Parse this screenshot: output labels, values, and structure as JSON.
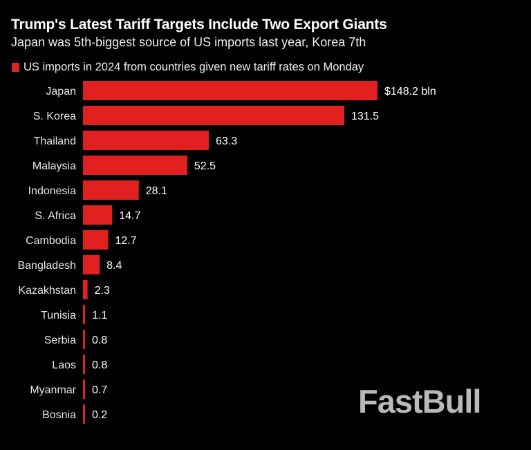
{
  "chart_data": {
    "type": "bar",
    "orientation": "horizontal",
    "title": "Trump's Latest Tariff Targets Include Two Export Giants",
    "subtitle": "Japan was 5th-biggest source of US imports last year, Korea 7th",
    "legend": "US imports in 2024 from countries given new tariff rates on Monday",
    "legend_position": "top-left",
    "categories": [
      "Japan",
      "S. Korea",
      "Thailand",
      "Malaysia",
      "Indonesia",
      "S. Africa",
      "Cambodia",
      "Bangladesh",
      "Kazakhstan",
      "Tunisia",
      "Serbia",
      "Laos",
      "Myanmar",
      "Bosnia"
    ],
    "values": [
      148.2,
      131.5,
      63.3,
      52.5,
      28.1,
      14.7,
      12.7,
      8.4,
      2.3,
      1.1,
      0.8,
      0.8,
      0.7,
      0.2
    ],
    "value_labels": [
      "$148.2 bln",
      "131.5",
      "63.3",
      "52.5",
      "28.1",
      "14.7",
      "12.7",
      "8.4",
      "2.3",
      "1.1",
      "0.8",
      "0.8",
      "0.7",
      "0.2"
    ],
    "unit": "$ bln",
    "grid": false,
    "bar_color": "#e0211f",
    "background": "#000000"
  },
  "watermark": "FastBull"
}
